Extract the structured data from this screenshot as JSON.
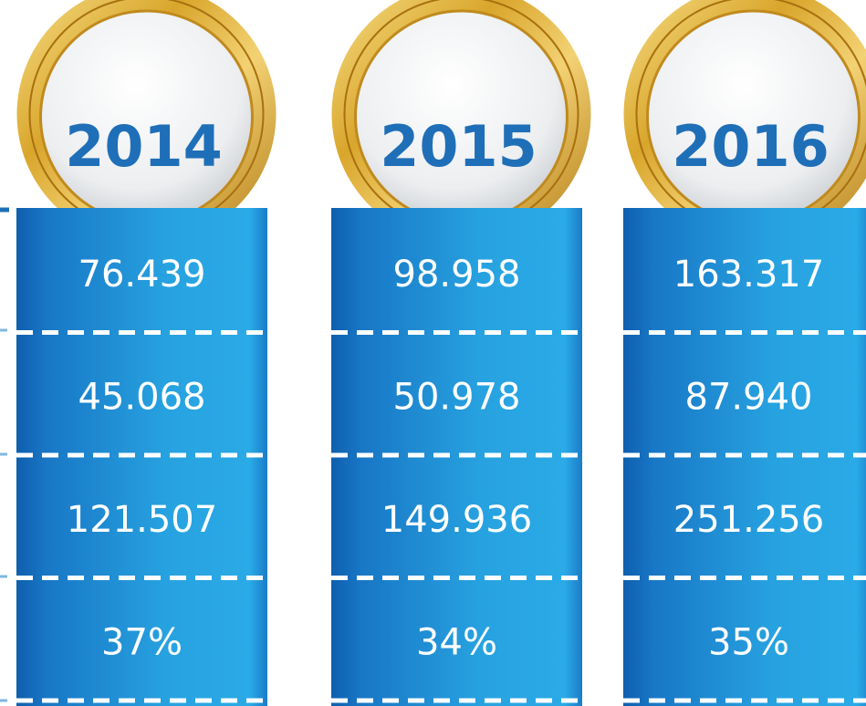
{
  "columns": [
    {
      "year": "2014",
      "cells": [
        "76.439",
        "45.068",
        "121.507",
        "37%"
      ]
    },
    {
      "year": "2015",
      "cells": [
        "98.958",
        "50.978",
        "149.936",
        "34%"
      ]
    },
    {
      "year": "2016",
      "cells": [
        "163.317",
        "87.940",
        "251.256",
        "35%"
      ]
    }
  ]
}
